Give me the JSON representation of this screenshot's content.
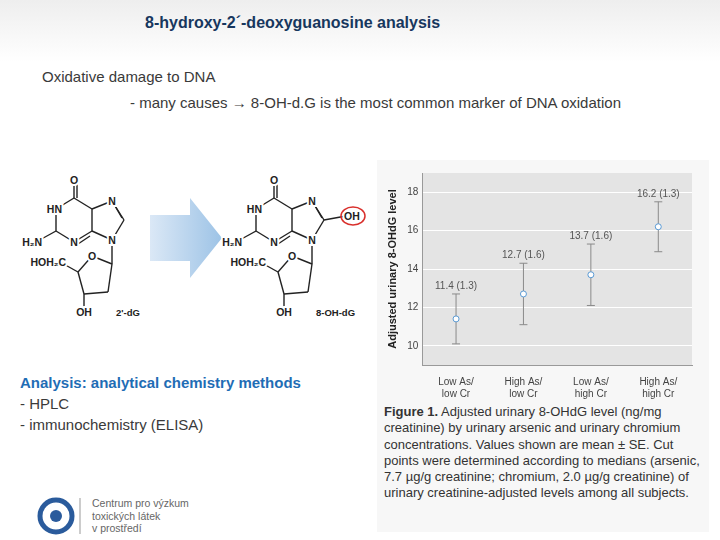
{
  "title": "8-hydroxy-2´-deoxyguanosine analysis",
  "bullets": [
    "Oxidative damage to DNA",
    "- many causes → 8-OH-d.G is the most common marker of DNA oxidation"
  ],
  "structures": [
    {
      "name": "2'-dG",
      "atoms": [
        "O",
        "HN",
        "H₂N",
        "N",
        "N",
        "N",
        "O",
        "HOH₂C",
        "OH"
      ]
    },
    {
      "name": "8-OH-dG",
      "atoms": [
        "O",
        "HN",
        "H₂N",
        "N",
        "N",
        "N",
        "O",
        "HOH₂C",
        "OH",
        "OH"
      ]
    }
  ],
  "analysis": {
    "heading": "Analysis: analytical chemistry methods",
    "items": [
      "- HPLC",
      "- immunochemistry (ELISA)"
    ]
  },
  "logo": [
    "Centrum pro výzkum",
    "toxických látek",
    "v prostředí"
  ],
  "chart_data": {
    "type": "scatter",
    "ylabel": "Adjusted urinary 8-OHdG level",
    "categories": [
      [
        "Low As/",
        "low Cr"
      ],
      [
        "High As/",
        "low Cr"
      ],
      [
        "Low As/",
        "high Cr"
      ],
      [
        "High As/",
        "high Cr"
      ]
    ],
    "values": [
      11.4,
      12.7,
      13.7,
      16.2
    ],
    "errors": [
      1.3,
      1.6,
      1.6,
      1.3
    ],
    "value_labels": [
      "11.4 (1.3)",
      "12.7 (1.6)",
      "13.7 (1.6)",
      "16.2 (1.3)"
    ],
    "data_labels": true,
    "color": "#5b9bd5",
    "marker": "circle",
    "ylim": [
      9,
      19
    ],
    "yticks": [
      10,
      12,
      14,
      16,
      18
    ],
    "grid": true,
    "caption": {
      "label": "Figure 1.",
      "text": "Adjusted urinary 8-OHdG level (ng/mg creatinine) by urinary arsenic and urinary chromium concentrations. Values shown are mean ± SE. Cut points were determined according to medians (arsenic, 7.7 µg/g creatinine; chromium, 2.0 µg/g creatinine) of urinary creatinine-adjusted levels among all subjects."
    }
  }
}
